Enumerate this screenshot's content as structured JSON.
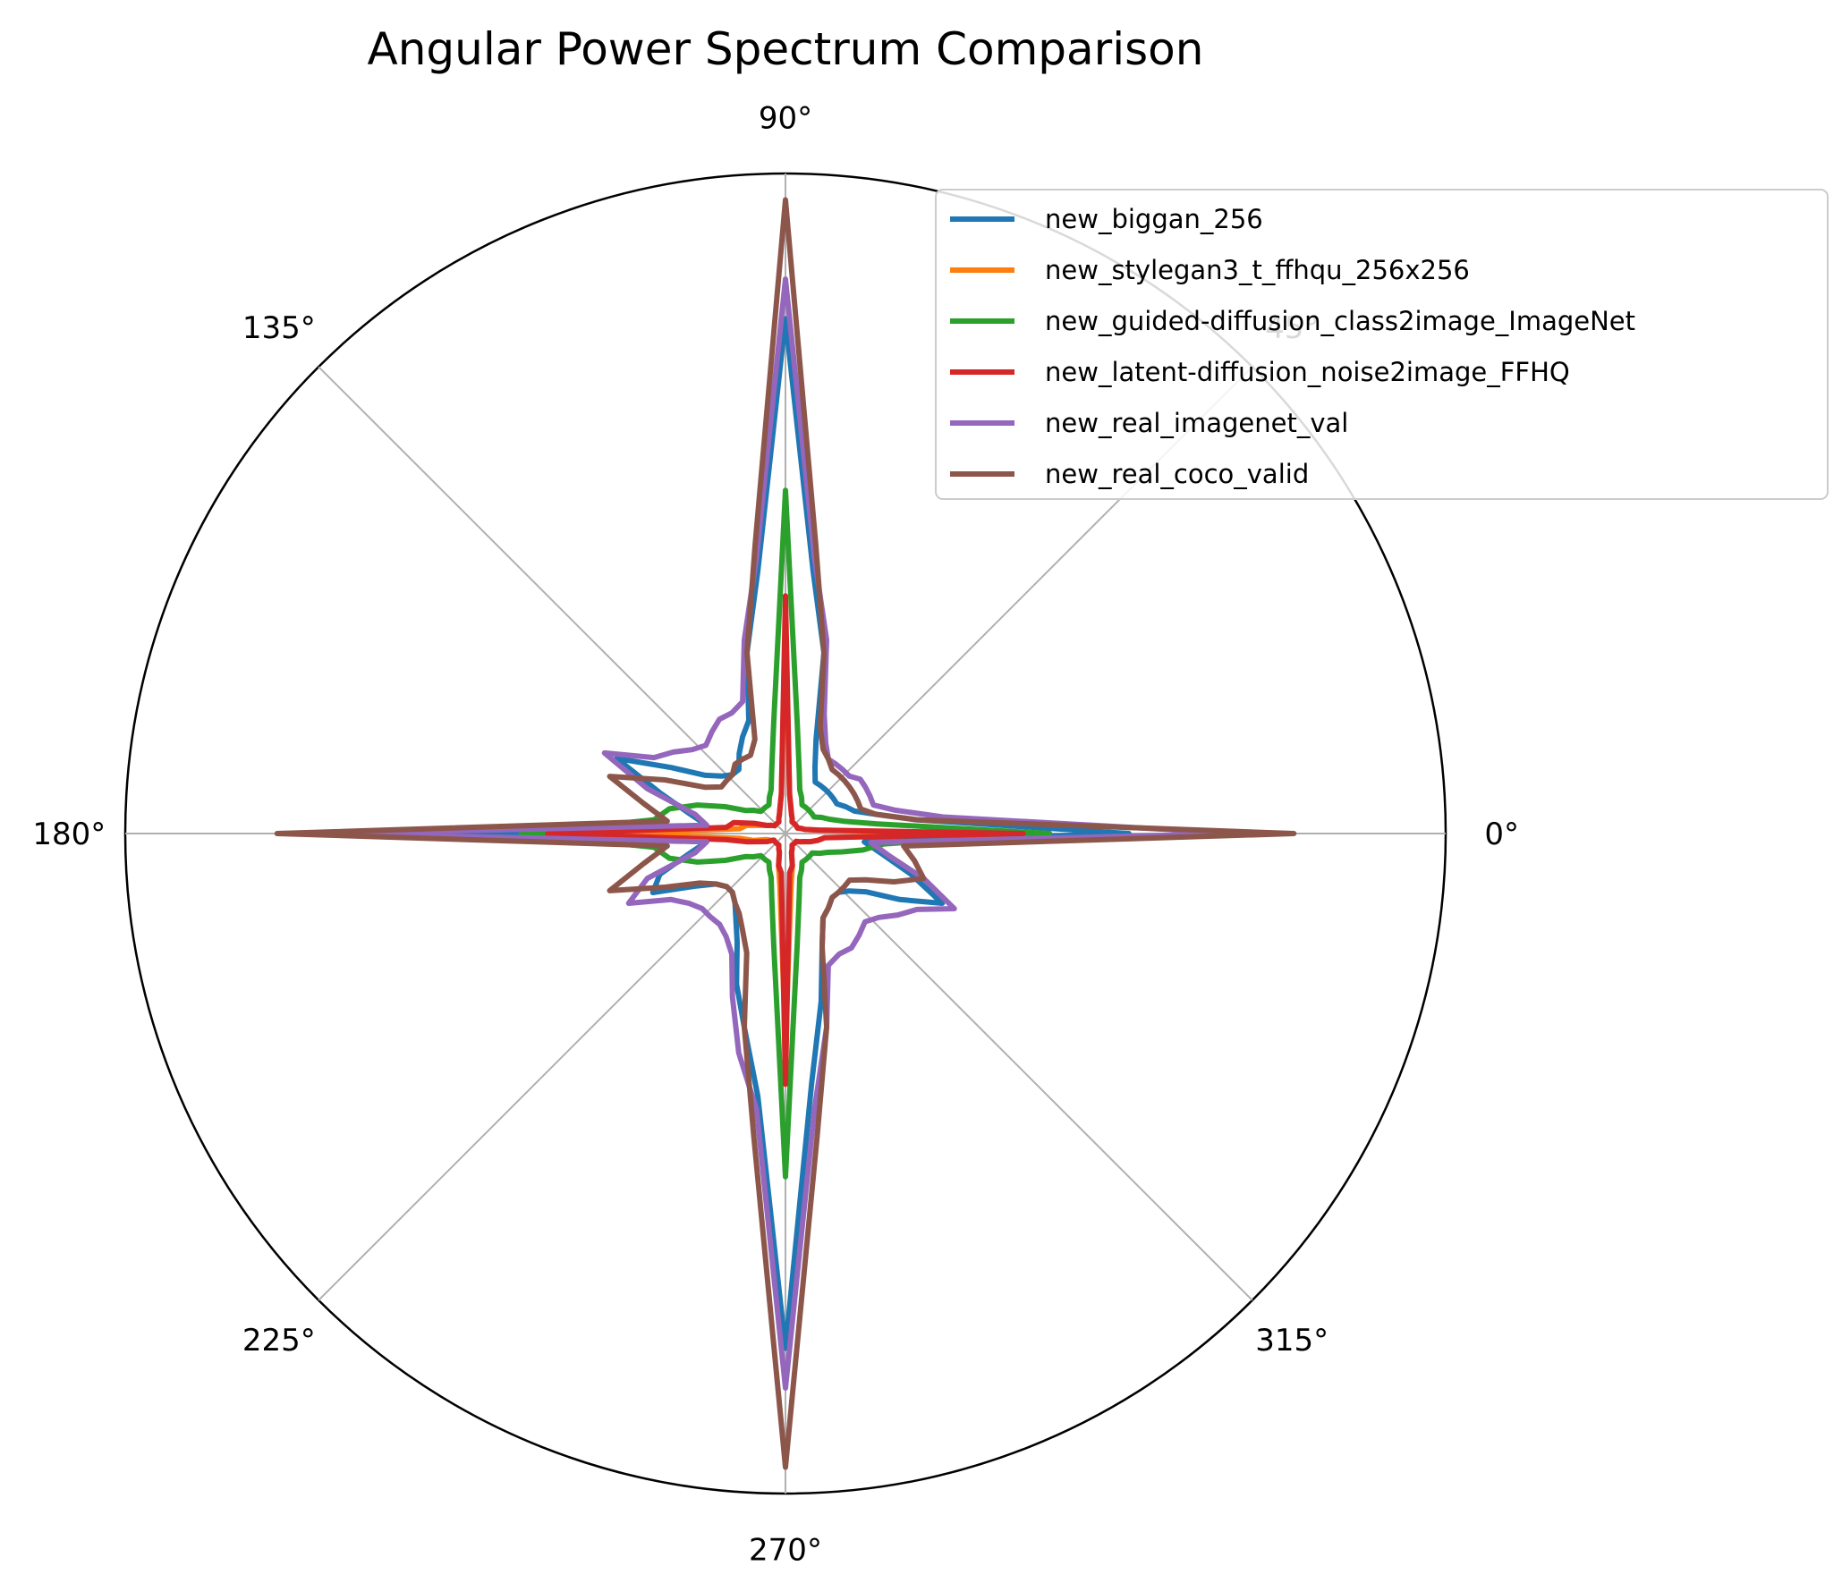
{
  "chart_data": {
    "type": "line",
    "projection": "polar",
    "title": "Angular Power Spectrum Comparison",
    "angle_ticks": [
      "0°",
      "45°",
      "90°",
      "135°",
      "180°",
      "225°",
      "270°",
      "315°"
    ],
    "angles_deg": [
      0,
      6,
      12,
      18,
      24,
      30,
      36,
      42,
      48,
      54,
      60,
      66,
      72,
      78,
      84,
      90,
      96,
      102,
      108,
      114,
      120,
      126,
      132,
      138,
      144,
      150,
      156,
      162,
      168,
      174,
      180,
      186,
      192,
      198,
      204,
      210,
      216,
      222,
      228,
      234,
      240,
      246,
      252,
      258,
      264,
      270,
      276,
      282,
      288,
      294,
      300,
      306,
      312,
      318,
      324,
      330,
      336,
      342,
      348,
      354
    ],
    "rlim": [
      0,
      1
    ],
    "grid": true,
    "radial_tick_labels": false,
    "legend_position": "top-right",
    "series": [
      {
        "name": "new_biggan_256",
        "color": "#1f77b4",
        "values": [
          0.52,
          0.2,
          0.14,
          0.11,
          0.1,
          0.09,
          0.09,
          0.09,
          0.09,
          0.09,
          0.09,
          0.11,
          0.15,
          0.28,
          0.4,
          0.78,
          0.4,
          0.28,
          0.18,
          0.16,
          0.14,
          0.12,
          0.12,
          0.13,
          0.15,
          0.2,
          0.28,
          0.2,
          0.15,
          0.12,
          0.52,
          0.12,
          0.15,
          0.2,
          0.22,
          0.16,
          0.13,
          0.12,
          0.12,
          0.13,
          0.15,
          0.18,
          0.24,
          0.3,
          0.4,
          0.78,
          0.38,
          0.26,
          0.18,
          0.14,
          0.13,
          0.12,
          0.12,
          0.13,
          0.15,
          0.2,
          0.26,
          0.2,
          0.15,
          0.12
        ]
      },
      {
        "name": "new_stylegan3_t_ffhqu_256x256",
        "color": "#ff7f0e",
        "values": [
          0.27,
          0.05,
          0.03,
          0.025,
          0.02,
          0.02,
          0.02,
          0.02,
          0.02,
          0.02,
          0.02,
          0.025,
          0.03,
          0.04,
          0.06,
          0.32,
          0.06,
          0.04,
          0.03,
          0.025,
          0.02,
          0.02,
          0.02,
          0.02,
          0.02,
          0.025,
          0.03,
          0.04,
          0.06,
          0.07,
          0.27,
          0.07,
          0.05,
          0.03,
          0.025,
          0.02,
          0.02,
          0.02,
          0.02,
          0.02,
          0.02,
          0.025,
          0.03,
          0.05,
          0.08,
          0.32,
          0.08,
          0.05,
          0.03,
          0.025,
          0.02,
          0.02,
          0.02,
          0.02,
          0.02,
          0.025,
          0.03,
          0.04,
          0.05,
          0.06
        ]
      },
      {
        "name": "new_guided-diffusion_class2image_ImageNet",
        "color": "#2ca02c",
        "values": [
          0.4,
          0.14,
          0.09,
          0.07,
          0.06,
          0.05,
          0.05,
          0.05,
          0.05,
          0.05,
          0.05,
          0.06,
          0.07,
          0.1,
          0.17,
          0.52,
          0.17,
          0.1,
          0.07,
          0.06,
          0.05,
          0.05,
          0.05,
          0.05,
          0.06,
          0.07,
          0.1,
          0.14,
          0.18,
          0.2,
          0.4,
          0.2,
          0.18,
          0.14,
          0.1,
          0.07,
          0.06,
          0.05,
          0.05,
          0.05,
          0.05,
          0.06,
          0.07,
          0.1,
          0.17,
          0.52,
          0.17,
          0.1,
          0.07,
          0.06,
          0.05,
          0.05,
          0.05,
          0.05,
          0.05,
          0.06,
          0.07,
          0.09,
          0.12,
          0.15
        ]
      },
      {
        "name": "new_latent-diffusion_noise2image_FFHQ",
        "color": "#d62728",
        "values": [
          0.36,
          0.05,
          0.03,
          0.025,
          0.02,
          0.02,
          0.02,
          0.02,
          0.02,
          0.02,
          0.02,
          0.025,
          0.03,
          0.04,
          0.06,
          0.36,
          0.06,
          0.04,
          0.03,
          0.025,
          0.02,
          0.02,
          0.02,
          0.02,
          0.02,
          0.025,
          0.03,
          0.05,
          0.08,
          0.09,
          0.36,
          0.09,
          0.06,
          0.04,
          0.03,
          0.02,
          0.02,
          0.02,
          0.02,
          0.02,
          0.02,
          0.025,
          0.03,
          0.05,
          0.06,
          0.38,
          0.06,
          0.05,
          0.03,
          0.025,
          0.02,
          0.02,
          0.02,
          0.02,
          0.02,
          0.025,
          0.03,
          0.04,
          0.05,
          0.06
        ]
      },
      {
        "name": "new_real_imagenet_val",
        "color": "#9467bd",
        "values": [
          0.69,
          0.24,
          0.17,
          0.14,
          0.14,
          0.14,
          0.14,
          0.13,
          0.13,
          0.13,
          0.13,
          0.15,
          0.19,
          0.3,
          0.42,
          0.84,
          0.42,
          0.3,
          0.21,
          0.2,
          0.2,
          0.19,
          0.18,
          0.19,
          0.21,
          0.23,
          0.3,
          0.22,
          0.14,
          0.12,
          0.69,
          0.12,
          0.14,
          0.22,
          0.26,
          0.2,
          0.18,
          0.17,
          0.17,
          0.17,
          0.18,
          0.2,
          0.26,
          0.34,
          0.42,
          0.84,
          0.42,
          0.3,
          0.21,
          0.2,
          0.2,
          0.19,
          0.18,
          0.19,
          0.21,
          0.23,
          0.28,
          0.22,
          0.16,
          0.13
        ]
      },
      {
        "name": "new_real_coco_valid",
        "color": "#8c564b",
        "values": [
          0.77,
          0.2,
          0.14,
          0.12,
          0.12,
          0.12,
          0.12,
          0.12,
          0.12,
          0.12,
          0.13,
          0.14,
          0.17,
          0.28,
          0.44,
          0.96,
          0.44,
          0.28,
          0.15,
          0.13,
          0.13,
          0.13,
          0.12,
          0.12,
          0.12,
          0.14,
          0.2,
          0.28,
          0.22,
          0.18,
          0.77,
          0.18,
          0.22,
          0.28,
          0.2,
          0.15,
          0.13,
          0.12,
          0.12,
          0.13,
          0.14,
          0.16,
          0.19,
          0.3,
          0.46,
          0.96,
          0.46,
          0.3,
          0.18,
          0.14,
          0.13,
          0.12,
          0.12,
          0.12,
          0.12,
          0.14,
          0.18,
          0.22,
          0.2,
          0.18
        ]
      }
    ]
  }
}
